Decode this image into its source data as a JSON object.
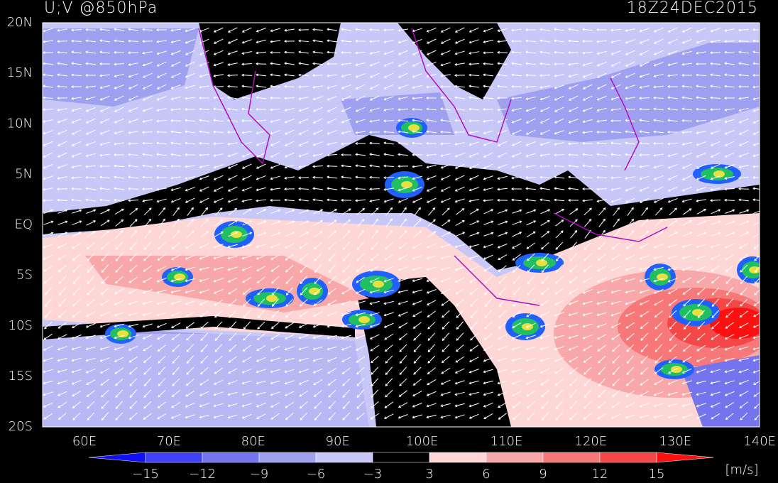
{
  "header": {
    "title": "U;V @850hPa",
    "time": "18Z24DEC2015"
  },
  "map": {
    "lat_labels": [
      "20N",
      "15N",
      "10N",
      "5N",
      "EQ",
      "5S",
      "10S",
      "15S",
      "20S"
    ],
    "lon_labels": [
      "60E",
      "70E",
      "80E",
      "90E",
      "100E",
      "110E",
      "120E",
      "130E",
      "140E"
    ]
  },
  "colorbar": {
    "labels": [
      "−15",
      "−12",
      "−9",
      "−6",
      "−3",
      "3",
      "6",
      "9",
      "12",
      "15"
    ],
    "colors": [
      "#1010f8",
      "#4040f4",
      "#7474ee",
      "#a0a0f0",
      "#c8c8f8",
      "#000000",
      "#ffd6d6",
      "#f8a8a8",
      "#f67878",
      "#f44848",
      "#ff1010"
    ],
    "unit": "[m/s]"
  }
}
